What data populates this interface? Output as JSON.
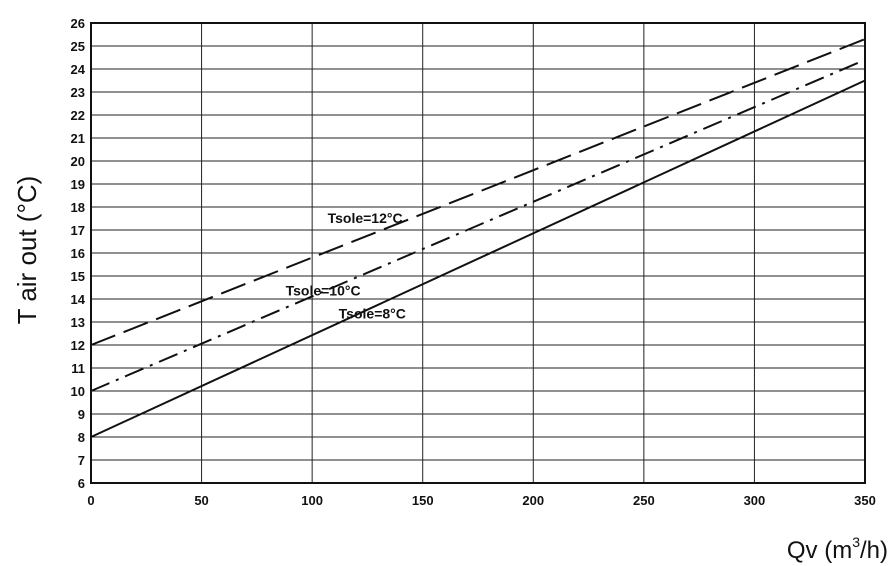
{
  "chart_data": {
    "type": "line",
    "title": "",
    "xlabel_base": "Qv (m",
    "xlabel_sup": "3",
    "xlabel_tail": "/h)",
    "ylabel": "T air out (°C)",
    "xlim": [
      0,
      350
    ],
    "ylim": [
      6,
      26
    ],
    "x_ticks": [
      0,
      50,
      100,
      150,
      200,
      250,
      300,
      350
    ],
    "y_ticks": [
      6,
      7,
      8,
      9,
      10,
      11,
      12,
      13,
      14,
      15,
      16,
      17,
      18,
      19,
      20,
      21,
      22,
      23,
      24,
      25,
      26
    ],
    "grid": true,
    "legend": "inline labels",
    "series": [
      {
        "name": "Tsole=12°C",
        "dash": "long-dash",
        "x": [
          0,
          350
        ],
        "y": [
          12.0,
          25.3
        ]
      },
      {
        "name": "Tsole=10°C",
        "dash": "dash-dot",
        "x": [
          0,
          350
        ],
        "y": [
          10.0,
          24.4
        ]
      },
      {
        "name": "Tsole=8°C",
        "dash": "solid",
        "x": [
          0,
          350
        ],
        "y": [
          8.0,
          23.5
        ]
      }
    ]
  }
}
